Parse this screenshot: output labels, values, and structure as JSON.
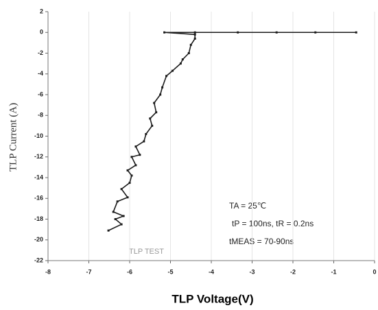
{
  "chart_data": {
    "type": "line",
    "xlabel": "TLP Voltage(V)",
    "ylabel": "TLP Current (A)",
    "annotations": [
      "TA = 25℃",
      "tP = 100ns, tR = 0.2ns",
      "tMEAS = 70-90ns",
      "TLP TEST"
    ],
    "xlim": [
      -8,
      0
    ],
    "xticks": [
      -8,
      -7,
      -6,
      -5,
      -4,
      -3,
      -2,
      -1,
      0
    ],
    "ylim": [
      -22,
      2
    ],
    "yticks": [
      2,
      0,
      -2,
      -4,
      -6,
      -8,
      -10,
      -12,
      -14,
      -16,
      -18,
      -20,
      -22
    ],
    "grid": "x",
    "series": [
      {
        "color": "#1a1a1a",
        "x": [
          -6.52,
          -6.2,
          -6.35,
          -6.15,
          -6.4,
          -6.3,
          -6.05,
          -6.2,
          -6.0,
          -5.95,
          -6.05,
          -5.85,
          -5.95,
          -5.75,
          -5.85,
          -5.65,
          -5.6,
          -5.45,
          -5.5,
          -5.35,
          -5.4,
          -5.25,
          -5.2,
          -5.1,
          -4.95,
          -4.75,
          -4.7,
          -4.55,
          -4.5,
          -4.4,
          -4.4,
          -5.15,
          -4.4,
          -3.35,
          -2.4,
          -1.45,
          -0.45
        ],
        "values": [
          -19.1,
          -18.5,
          -18.0,
          -17.7,
          -17.3,
          -16.3,
          -15.9,
          -15.1,
          -14.5,
          -13.8,
          -13.3,
          -12.8,
          -12.0,
          -11.8,
          -11.0,
          -10.5,
          -9.8,
          -9.0,
          -8.3,
          -7.7,
          -6.8,
          -6.0,
          -5.3,
          -4.2,
          -3.7,
          -3.0,
          -2.6,
          -2.0,
          -1.2,
          -0.6,
          -0.2,
          0,
          0,
          0,
          0,
          0,
          0
        ]
      }
    ]
  }
}
